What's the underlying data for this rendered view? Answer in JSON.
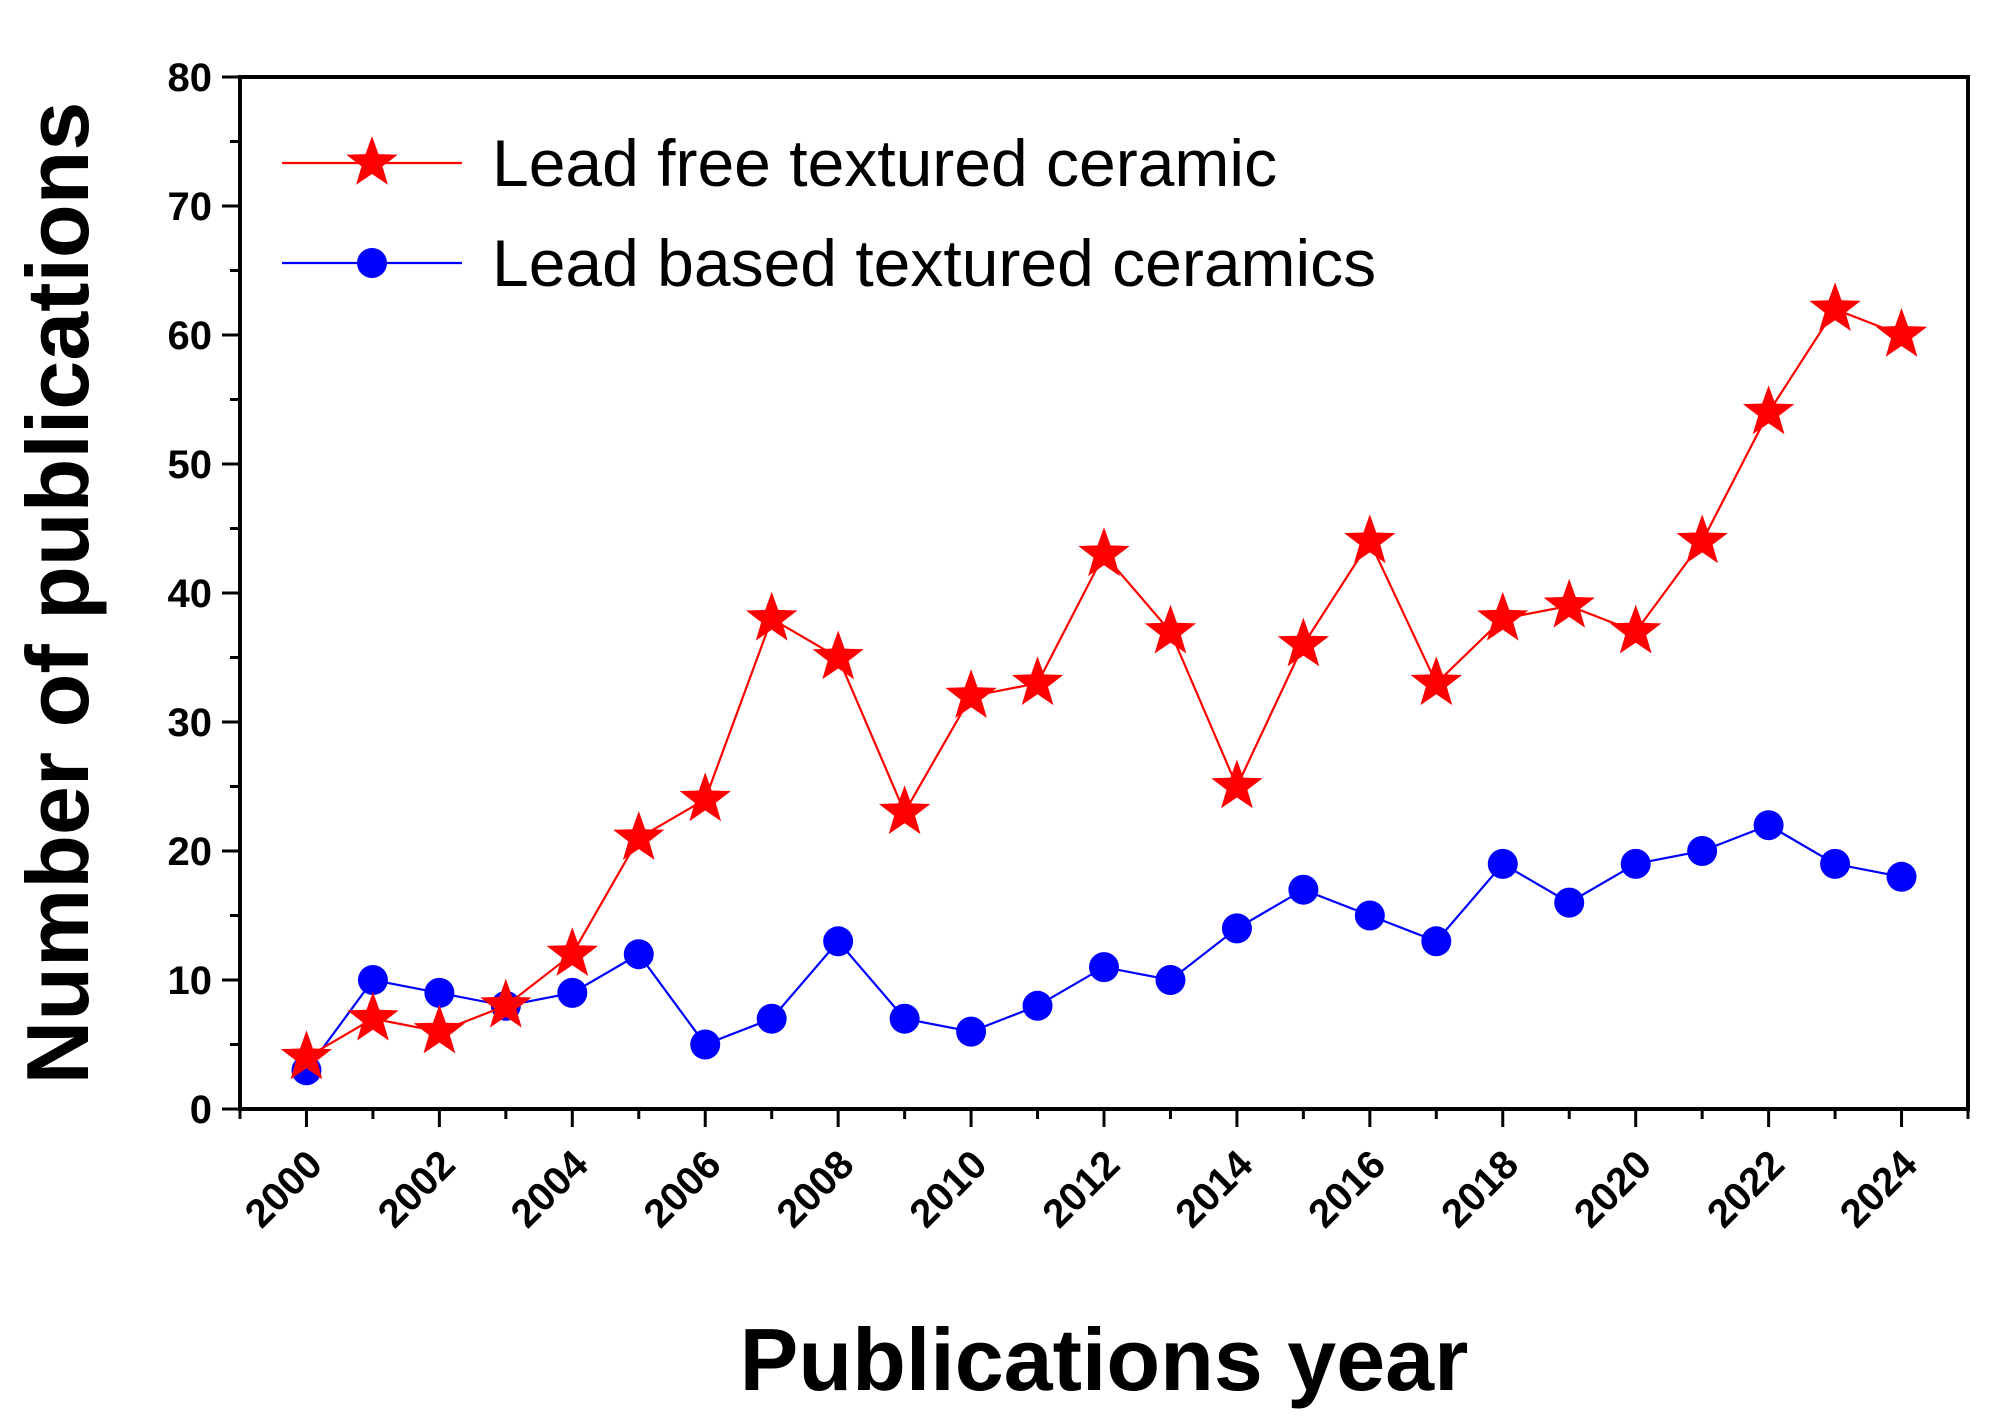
{
  "chart_data": {
    "type": "line",
    "xlabel": "Publications year",
    "ylabel": "Number of publications",
    "xlim": [
      1999,
      2025
    ],
    "ylim": [
      0,
      80
    ],
    "x_ticks": [
      2000,
      2002,
      2004,
      2006,
      2008,
      2010,
      2012,
      2014,
      2016,
      2018,
      2020,
      2022,
      2024
    ],
    "x_tick_labels": [
      "2000",
      "2002",
      "2004",
      "2006",
      "2008",
      "2010",
      "2012",
      "2014",
      "2016",
      "2018",
      "2020",
      "2022",
      "2024"
    ],
    "y_ticks": [
      0,
      10,
      20,
      30,
      40,
      50,
      60,
      70,
      80
    ],
    "y_tick_labels": [
      "0",
      "10",
      "20",
      "30",
      "40",
      "50",
      "60",
      "70",
      "80"
    ],
    "x": [
      2000,
      2001,
      2002,
      2003,
      2004,
      2005,
      2006,
      2007,
      2008,
      2009,
      2010,
      2011,
      2012,
      2013,
      2014,
      2015,
      2016,
      2017,
      2018,
      2019,
      2020,
      2021,
      2022,
      2023,
      2024
    ],
    "grid": false,
    "legend_position": "top-left",
    "series": [
      {
        "name": "Lead free textured ceramic",
        "color": "#ff0000",
        "marker": "star",
        "values": [
          4,
          7,
          6,
          8,
          12,
          21,
          24,
          38,
          35,
          23,
          32,
          33,
          43,
          37,
          25,
          36,
          44,
          33,
          38,
          39,
          37,
          44,
          54,
          62,
          60
        ]
      },
      {
        "name": "Lead based textured ceramics",
        "color": "#0000ff",
        "marker": "circle",
        "values": [
          3,
          10,
          9,
          8,
          9,
          12,
          5,
          7,
          13,
          7,
          6,
          8,
          11,
          10,
          14,
          17,
          15,
          13,
          19,
          16,
          19,
          20,
          22,
          19,
          18
        ]
      }
    ]
  }
}
